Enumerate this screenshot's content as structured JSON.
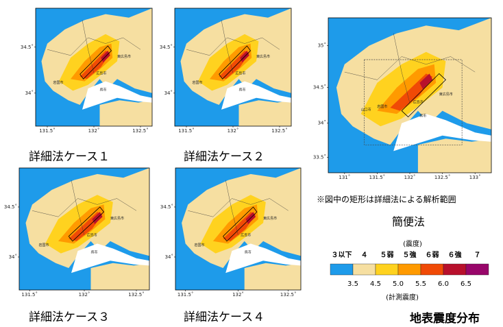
{
  "maps": [
    {
      "id": "case1",
      "caption": "詳細法ケース１",
      "lat_ticks": [
        "34.5˚",
        "34˚"
      ],
      "lon_ticks": [
        "131.5˚",
        "132˚",
        "132.5˚"
      ],
      "places": [
        "広島市",
        "東広島市",
        "岩国市",
        "呉市"
      ]
    },
    {
      "id": "case2",
      "caption": "詳細法ケース２",
      "lat_ticks": [
        "34.5˚",
        "34˚"
      ],
      "lon_ticks": [
        "131.5˚",
        "132˚",
        "132.5˚"
      ],
      "places": [
        "広島市",
        "東広島市",
        "岩国市",
        "呉市"
      ]
    },
    {
      "id": "case3",
      "caption": "詳細法ケース３",
      "lat_ticks": [
        "34.5˚",
        "34˚"
      ],
      "lon_ticks": [
        "131.5˚",
        "132˚",
        "132.5˚"
      ],
      "places": [
        "広島市",
        "東広島市",
        "岩国市",
        "呉市"
      ]
    },
    {
      "id": "case4",
      "caption": "詳細法ケース４",
      "lat_ticks": [
        "34.5˚",
        "34˚"
      ],
      "lon_ticks": [
        "131.5˚",
        "132˚",
        "132.5˚"
      ],
      "places": [
        "広島市",
        "東広島市",
        "岩国市",
        "呉市"
      ]
    },
    {
      "id": "simple",
      "caption": "簡便法",
      "lat_ticks": [
        "35˚",
        "34.5˚",
        "34˚",
        "33.5˚"
      ],
      "lon_ticks": [
        "131˚",
        "131.5˚",
        "132˚",
        "132.5˚",
        "133˚"
      ],
      "places": [
        "広島市",
        "東広島市",
        "岩国市",
        "呉市",
        "山口市"
      ]
    }
  ],
  "note": "※図中の矩形は詳細法による解析範囲",
  "legend": {
    "top_title": "(震度)",
    "intensity_labels": [
      "３以下",
      "４",
      "５弱",
      "５強",
      "６弱",
      "６強",
      "７"
    ],
    "value_labels": [
      "3.5",
      "4.5",
      "5.0",
      "5.5",
      "6.0",
      "6.5"
    ],
    "bottom_title": "(計測震度)",
    "colors": [
      "#1e9bea",
      "#f6dfa1",
      "#ffd21f",
      "#ff9a00",
      "#f04a06",
      "#b8102c",
      "#98066a"
    ]
  },
  "title": "地表震度分布"
}
